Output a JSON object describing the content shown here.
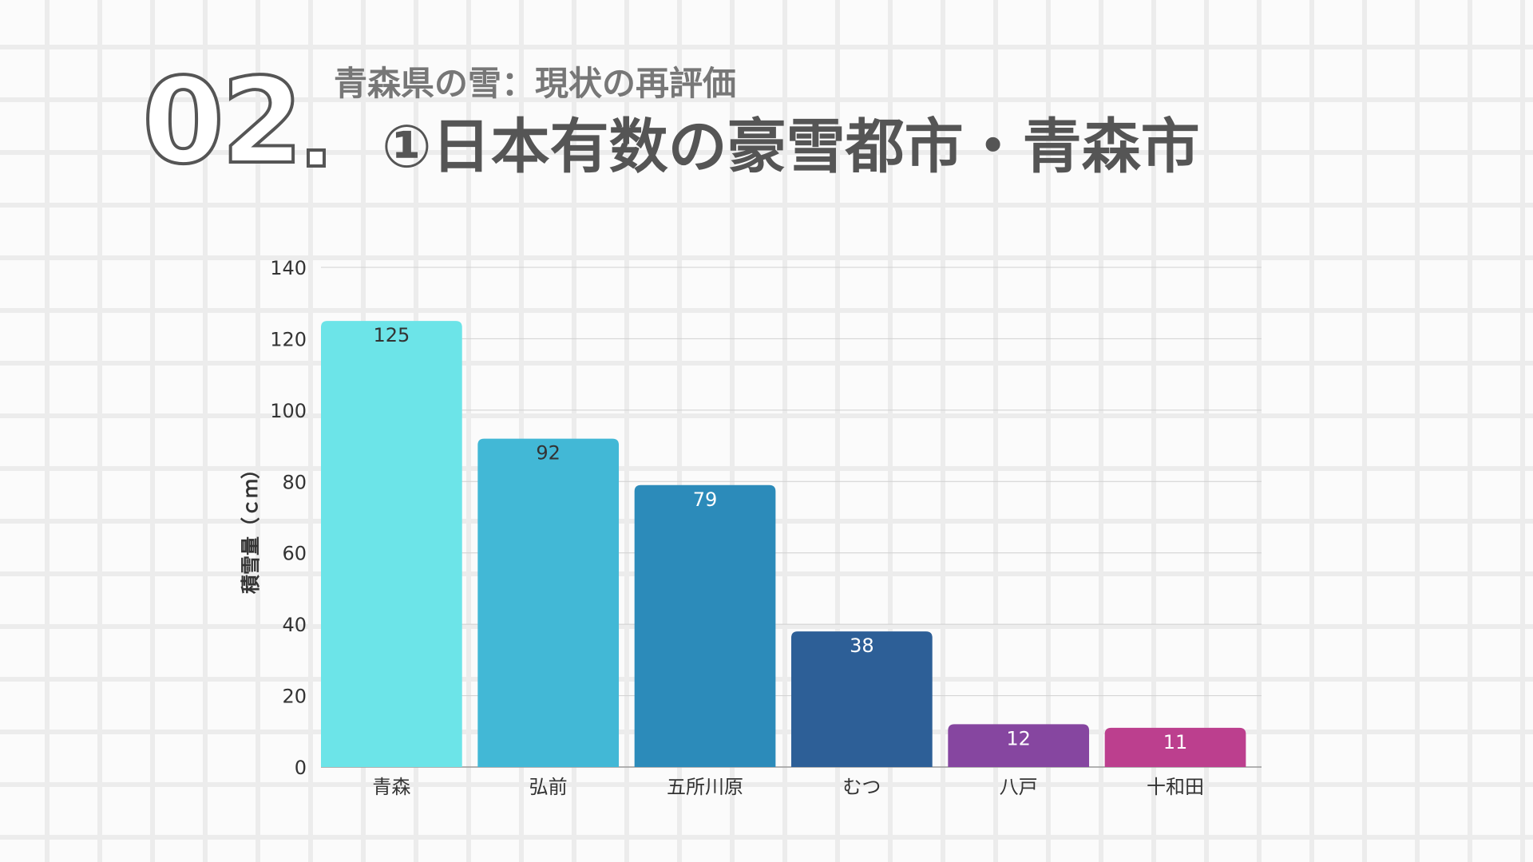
{
  "header": {
    "number": "02",
    "subtitle": "青森県の雪：現状の再評価",
    "title": "①日本有数の豪雪都市・青森市"
  },
  "chart_data": {
    "type": "bar",
    "categories": [
      "青森",
      "弘前",
      "五所川原",
      "むつ",
      "八戸",
      "十和田"
    ],
    "values": [
      125,
      92,
      79,
      38,
      12,
      11
    ],
    "data_labels": [
      "125",
      "92",
      "79",
      "38",
      "12",
      "11"
    ],
    "colors": [
      "#6ce4e8",
      "#42b8d6",
      "#2c8bba",
      "#2d5f97",
      "#8646a0",
      "#bc3f8e"
    ],
    "label_colors": [
      "#333333",
      "#333333",
      "#ffffff",
      "#ffffff",
      "#ffffff",
      "#ffffff"
    ],
    "xlabel": "",
    "ylabel": "積雪量（ｃｍ）",
    "ylim": [
      0,
      140
    ],
    "yticks": [
      0,
      20,
      40,
      60,
      80,
      100,
      120,
      140
    ],
    "ytick_labels": [
      "0",
      "20",
      "40",
      "60",
      "80",
      "100",
      "120",
      "140"
    ],
    "grid": true,
    "legend": "none"
  }
}
